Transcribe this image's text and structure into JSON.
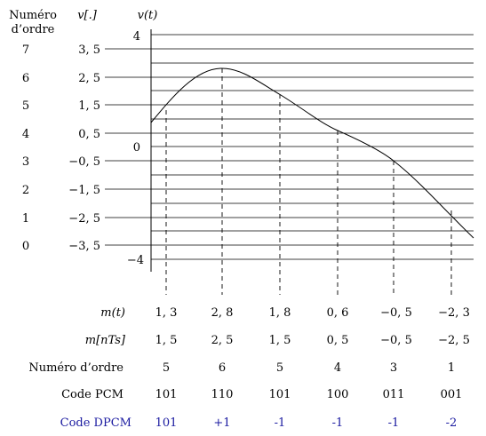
{
  "header": {
    "order_title_line1": "Numéro",
    "order_title_line2": "d’ordre",
    "quantized_label": "v[.]",
    "signal_label": "v(t)"
  },
  "axis": {
    "top_value": "4",
    "zero_value": "0",
    "bottom_value": "−4"
  },
  "levels": [
    {
      "order": "7",
      "value": "3, 5"
    },
    {
      "order": "6",
      "value": "2, 5"
    },
    {
      "order": "5",
      "value": "1, 5"
    },
    {
      "order": "4",
      "value": "0, 5"
    },
    {
      "order": "3",
      "value": "−0, 5"
    },
    {
      "order": "2",
      "value": "−1, 5"
    },
    {
      "order": "1",
      "value": "−2, 5"
    },
    {
      "order": "0",
      "value": "−3, 5"
    }
  ],
  "table": {
    "row_labels": {
      "samples": "m(t)",
      "quantized": "m[nTs]",
      "order": "Numéro d’ordre",
      "pcm": "Code PCM",
      "dpcm": "Code DPCM"
    },
    "samples": [
      "1, 3",
      "2, 8",
      "1, 8",
      "0, 6",
      "−0, 5",
      "−2, 3"
    ],
    "quantized": [
      "1, 5",
      "2, 5",
      "1, 5",
      "0, 5",
      "−0, 5",
      "−2, 5"
    ],
    "order": [
      "5",
      "6",
      "5",
      "4",
      "3",
      "1"
    ],
    "pcm": [
      "101",
      "110",
      "101",
      "100",
      "011",
      "001"
    ],
    "dpcm": [
      "101",
      "+1",
      "-1",
      "-1",
      "-1",
      "-2"
    ]
  },
  "colors": {
    "dpcm": "#1a1aa0",
    "lines": "#000000"
  }
}
